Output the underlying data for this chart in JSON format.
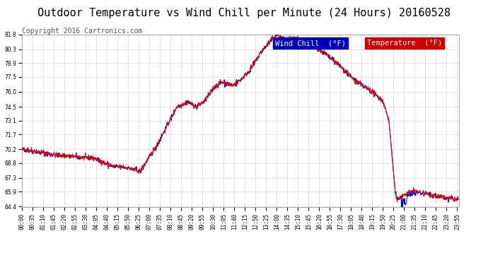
{
  "title": "Outdoor Temperature vs Wind Chill per Minute (24 Hours) 20160528",
  "copyright": "Copyright 2016 Cartronics.com",
  "background_color": "#ffffff",
  "plot_bg_color": "#ffffff",
  "grid_color": "#bbbbbb",
  "temp_color": "#dd0000",
  "wind_color": "#0000cc",
  "ylim": [
    64.4,
    81.8
  ],
  "yticks": [
    64.4,
    65.9,
    67.3,
    68.8,
    70.2,
    71.7,
    73.1,
    74.5,
    76.0,
    77.5,
    78.9,
    80.3,
    81.8
  ],
  "legend_wind_label": "Wind Chill  (°F)",
  "legend_temp_label": "Temperature  (°F)",
  "title_fontsize": 11,
  "copyright_fontsize": 7,
  "tick_fontsize": 5.5,
  "legend_fontsize": 7.5
}
